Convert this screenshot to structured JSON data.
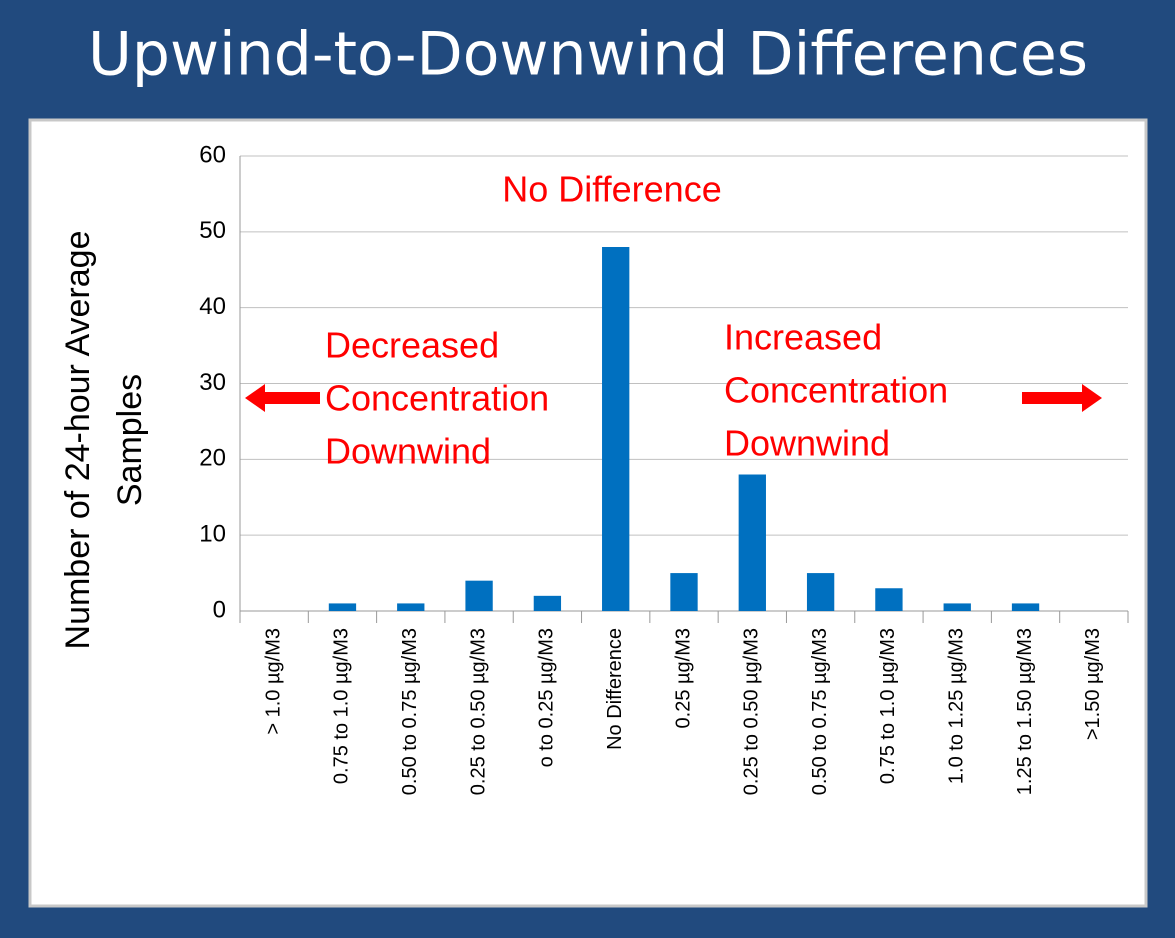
{
  "chart_data": {
    "type": "bar",
    "title": "Upwind-to-Downwind Differences",
    "ylabel": [
      "Number of 24-hour Average",
      "Samples"
    ],
    "categories": [
      "> 1.0 µg/M3",
      "0.75 to 1.0 µg/M3",
      "0.50 to 0.75 µg/M3",
      "0.25 to 0.50 µg/M3",
      "o to 0.25 µg/M3",
      "No Difference",
      "0.25 µg/M3",
      "0.25 to 0.50 µg/M3",
      "0.50 to 0.75 µg/M3",
      "0.75 to 1.0 µg/M3",
      "1.0 to 1.25 µg/M3",
      "1.25 to 1.50 µg/M3",
      ">1.50 µg/M3"
    ],
    "values": [
      0,
      1,
      1,
      4,
      2,
      48,
      5,
      18,
      5,
      3,
      1,
      1,
      0
    ],
    "color": "#0070c0",
    "ylim": [
      0,
      60
    ],
    "yticks": [
      0,
      10,
      20,
      30,
      40,
      50,
      60
    ],
    "grid": true,
    "annotations": [
      [
        "No Difference"
      ],
      [
        "Decreased",
        "Concentration",
        "Downwind"
      ],
      [
        "Increased",
        "Concentration",
        "Downwind"
      ]
    ],
    "annotation_color": "#ff0000"
  }
}
